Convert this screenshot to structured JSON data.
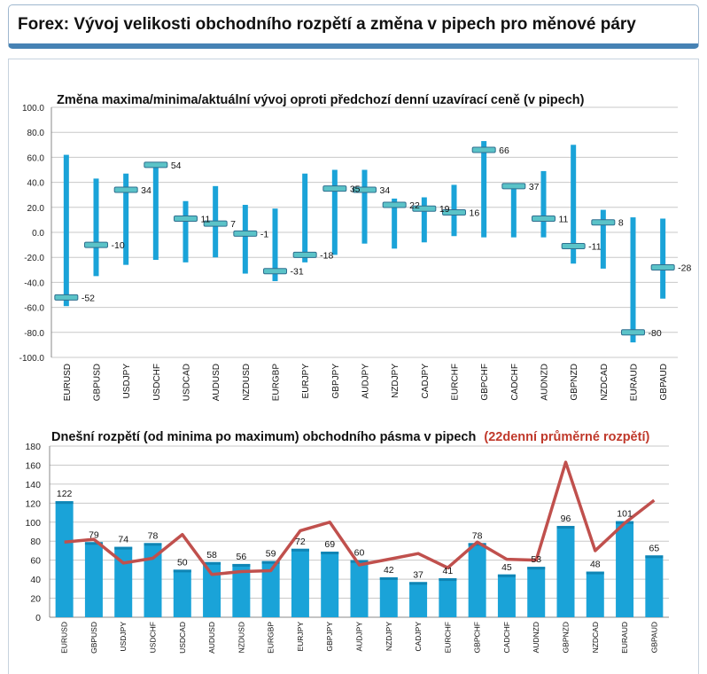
{
  "header": {
    "title": "Forex: Vývoj velikosti obchodního rozpětí a změna v pipech pro měnové páry"
  },
  "colors": {
    "bar": "#1aa3d8",
    "bar_top": "#0f85b5",
    "line": "#c0504d",
    "marker": "#5bc3c8",
    "grid": "#c8c8c8",
    "title_red": "#c0392b"
  },
  "chart_data": [
    {
      "type": "bar",
      "title": "Změna maxima/minima/aktuální vývoj oproti předchozí denní uzavírací ceně (v pipech)",
      "categories": [
        "EURUSD",
        "GBPUSD",
        "USDJPY",
        "USDCHF",
        "USDCAD",
        "AUDUSD",
        "NZDUSD",
        "EURGBP",
        "EURJPY",
        "GBPJPY",
        "AUDJPY",
        "NZDJPY",
        "CADJPY",
        "EURCHF",
        "GBPCHF",
        "CADCHF",
        "AUDNZD",
        "GBPNZD",
        "NZDCAD",
        "EURAUD",
        "GBPAUD"
      ],
      "high": [
        62,
        43,
        47,
        55,
        25,
        37,
        22,
        19,
        47,
        50,
        50,
        27,
        28,
        38,
        73,
        39,
        49,
        70,
        18,
        12,
        11
      ],
      "low": [
        -59,
        -35,
        -26,
        -22,
        -24,
        -20,
        -33,
        -39,
        -24,
        -18,
        -9,
        -13,
        -8,
        -3,
        -4,
        -4,
        -4,
        -25,
        -29,
        -88,
        -53
      ],
      "current": [
        -52,
        -10,
        34,
        54,
        11,
        7,
        -1,
        -31,
        -18,
        35,
        34,
        22,
        19,
        16,
        66,
        37,
        11,
        -11,
        8,
        -80,
        -28
      ],
      "labels": [
        "-52",
        "-10",
        "34",
        "54",
        "11",
        "7",
        "-1",
        "-31",
        "-18",
        "35",
        "34",
        "22",
        "19",
        "16",
        "66",
        "37",
        "11",
        "-11",
        "8",
        "-80",
        "-28"
      ],
      "ylim": [
        -100,
        100
      ],
      "yticks": [
        "100.0",
        "80.0",
        "60.0",
        "40.0",
        "20.0",
        "0.0",
        "-20.0",
        "-40.0",
        "-60.0",
        "-80.0",
        "-100.0"
      ],
      "grid": true,
      "xlabel": "",
      "ylabel": ""
    },
    {
      "type": "bar",
      "title": "Dnešní rozpětí (od minima po maximum) obchodního pásma v pipech",
      "title_highlight": "(22denní průměrné rozpětí)",
      "categories": [
        "EURUSD",
        "GBPUSD",
        "USDJPY",
        "USDCHF",
        "USDCAD",
        "AUDUSD",
        "NZDUSD",
        "EURGBP",
        "EURJPY",
        "GBPJPY",
        "AUDJPY",
        "NZDJPY",
        "CADJPY",
        "EURCHF",
        "GBPCHF",
        "CADCHF",
        "AUDNZD",
        "GBPNZD",
        "NZDCAD",
        "EURAUD",
        "GBPAUD"
      ],
      "values": [
        122,
        79,
        74,
        78,
        50,
        58,
        56,
        59,
        72,
        69,
        60,
        42,
        37,
        41,
        78,
        45,
        53,
        96,
        48,
        101,
        65
      ],
      "labels": [
        "122",
        "79",
        "74",
        "78",
        "50",
        "58",
        "56",
        "59",
        "72",
        "69",
        "60",
        "42",
        "37",
        "41",
        "78",
        "45",
        "53",
        "96",
        "48",
        "101",
        "65"
      ],
      "series": [
        {
          "values": [
            122,
            79,
            74,
            78,
            50,
            58,
            56,
            59,
            72,
            69,
            60,
            42,
            37,
            41,
            78,
            45,
            53,
            96,
            48,
            101,
            65
          ]
        },
        {
          "values": [
            79,
            82,
            57,
            62,
            87,
            45,
            48,
            49,
            91,
            100,
            55,
            61,
            67,
            52,
            79,
            61,
            60,
            163,
            70,
            99,
            123
          ]
        }
      ],
      "ylim": [
        0,
        180
      ],
      "yticks": [
        "0",
        "20",
        "40",
        "60",
        "80",
        "100",
        "120",
        "140",
        "160",
        "180"
      ],
      "grid": true,
      "xlabel": "",
      "ylabel": ""
    }
  ]
}
